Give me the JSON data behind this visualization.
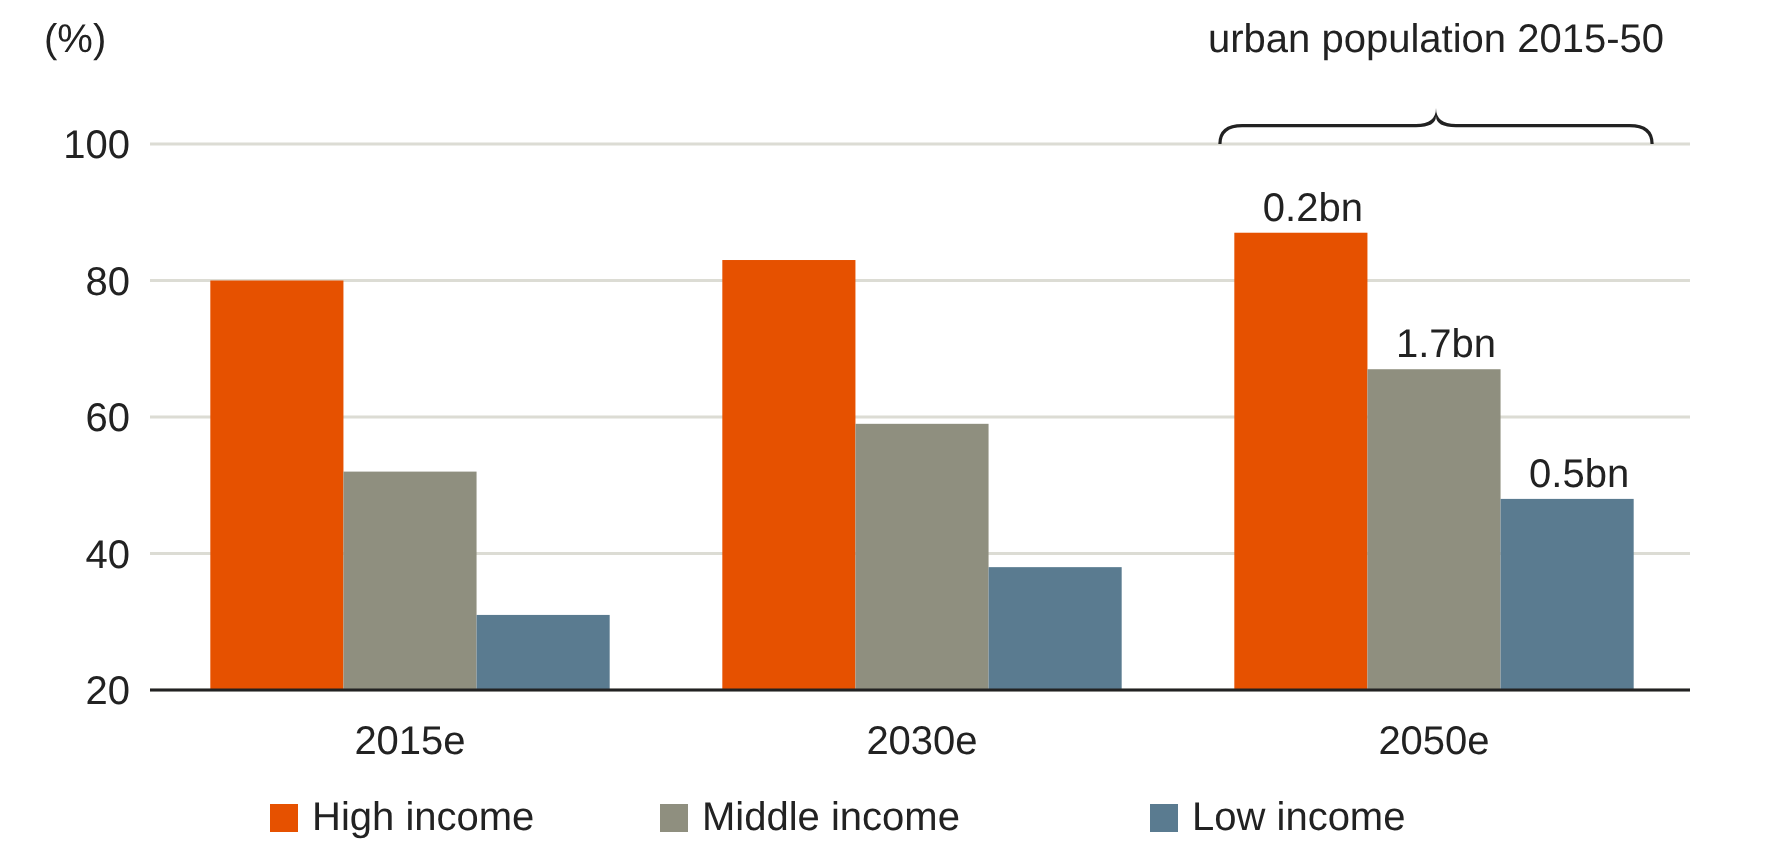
{
  "chart_data": {
    "type": "bar",
    "ylabel": "(%)",
    "categories": [
      "2015e",
      "2030e",
      "2050e"
    ],
    "series": [
      {
        "name": "High income",
        "color": "#e65100",
        "values": [
          80,
          83,
          87
        ]
      },
      {
        "name": "Middle income",
        "color": "#8f8f7f",
        "values": [
          52,
          59,
          67
        ]
      },
      {
        "name": "Low income",
        "color": "#5a7b90",
        "values": [
          31,
          38,
          48
        ]
      }
    ],
    "ylim": [
      20,
      100
    ],
    "yticks": [
      20,
      40,
      60,
      80,
      100
    ],
    "grid": "y",
    "legend": "bottom",
    "annotations": [
      "urban population 2015-50",
      "0.2bn",
      "1.7bn",
      "0.5bn"
    ]
  }
}
